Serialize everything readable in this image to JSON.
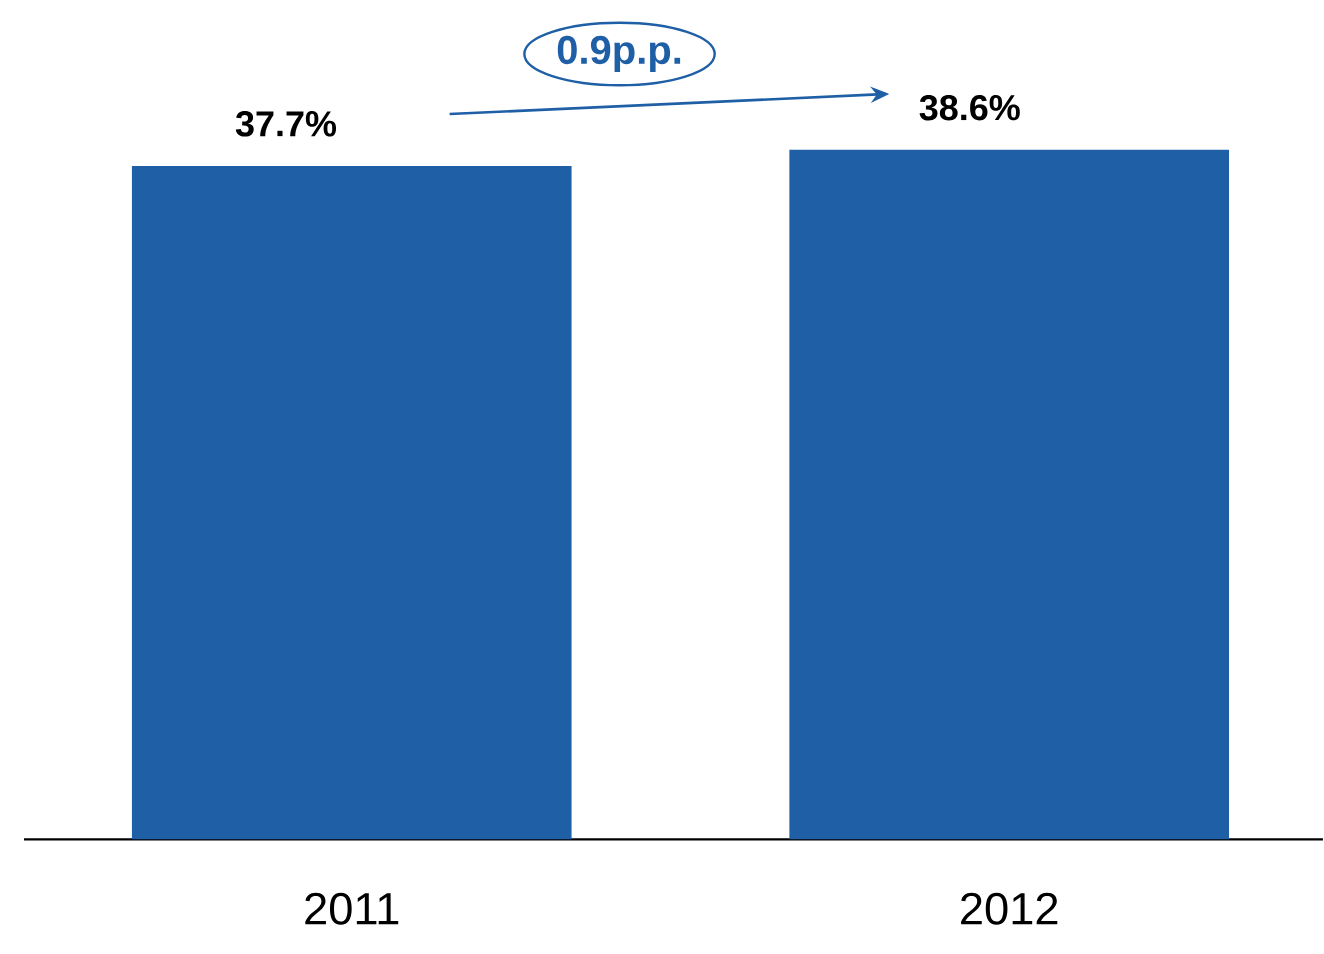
{
  "chart_data": {
    "type": "bar",
    "categories": [
      "2011",
      "2012"
    ],
    "values": [
      37.7,
      38.6
    ],
    "value_labels": [
      "37.7%",
      "38.6%"
    ],
    "color": "#1f5fa6",
    "tick_labels": "x",
    "annotations": [
      "0.9p.p."
    ]
  }
}
